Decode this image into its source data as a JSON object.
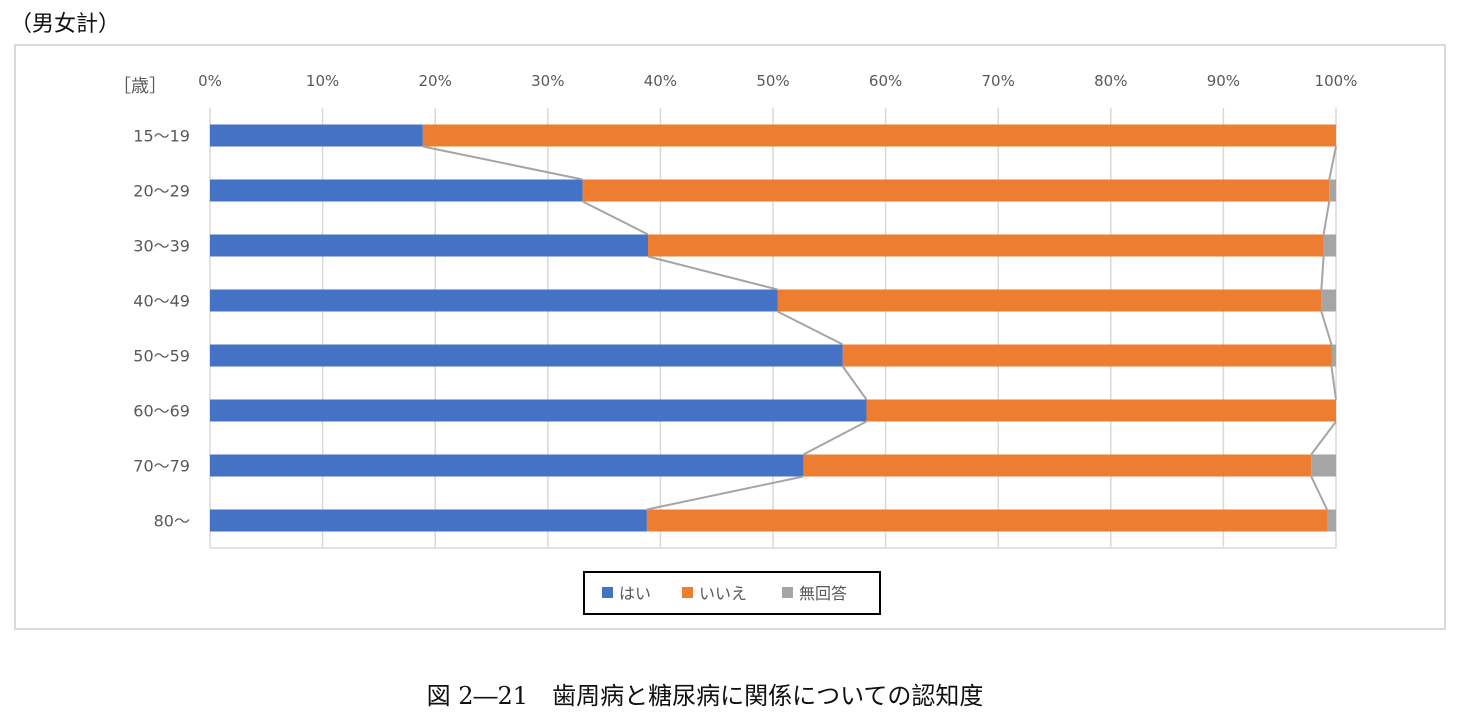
{
  "header": {
    "group_label": "（男女計）"
  },
  "caption": "図 2―21　歯周病と糖尿病に関係についての認知度",
  "chart_data": {
    "type": "bar",
    "orientation": "horizontal-stacked-100",
    "title": "",
    "ylabel": "［歳］",
    "xlabel": "",
    "xlim": [
      0,
      100
    ],
    "x_ticks": [
      "0%",
      "10%",
      "20%",
      "30%",
      "40%",
      "50%",
      "60%",
      "70%",
      "80%",
      "90%",
      "100%"
    ],
    "grid": true,
    "series_lines": true,
    "legend_position": "bottom",
    "categories": [
      "15～19",
      "20～29",
      "30～39",
      "40～49",
      "50～59",
      "60～69",
      "70～79",
      "80～"
    ],
    "series": [
      {
        "name": "はい",
        "color": "#4472c4",
        "values": [
          18.9,
          33.1,
          38.9,
          50.4,
          56.2,
          58.3,
          52.7,
          38.8
        ]
      },
      {
        "name": "いいえ",
        "color": "#ed7d31",
        "values": [
          81.1,
          66.3,
          60.0,
          48.3,
          43.4,
          41.7,
          45.1,
          60.4
        ]
      },
      {
        "name": "無回答",
        "color": "#a5a5a5",
        "values": [
          0.0,
          0.6,
          1.1,
          1.3,
          0.4,
          0.0,
          2.2,
          0.8
        ]
      }
    ]
  }
}
